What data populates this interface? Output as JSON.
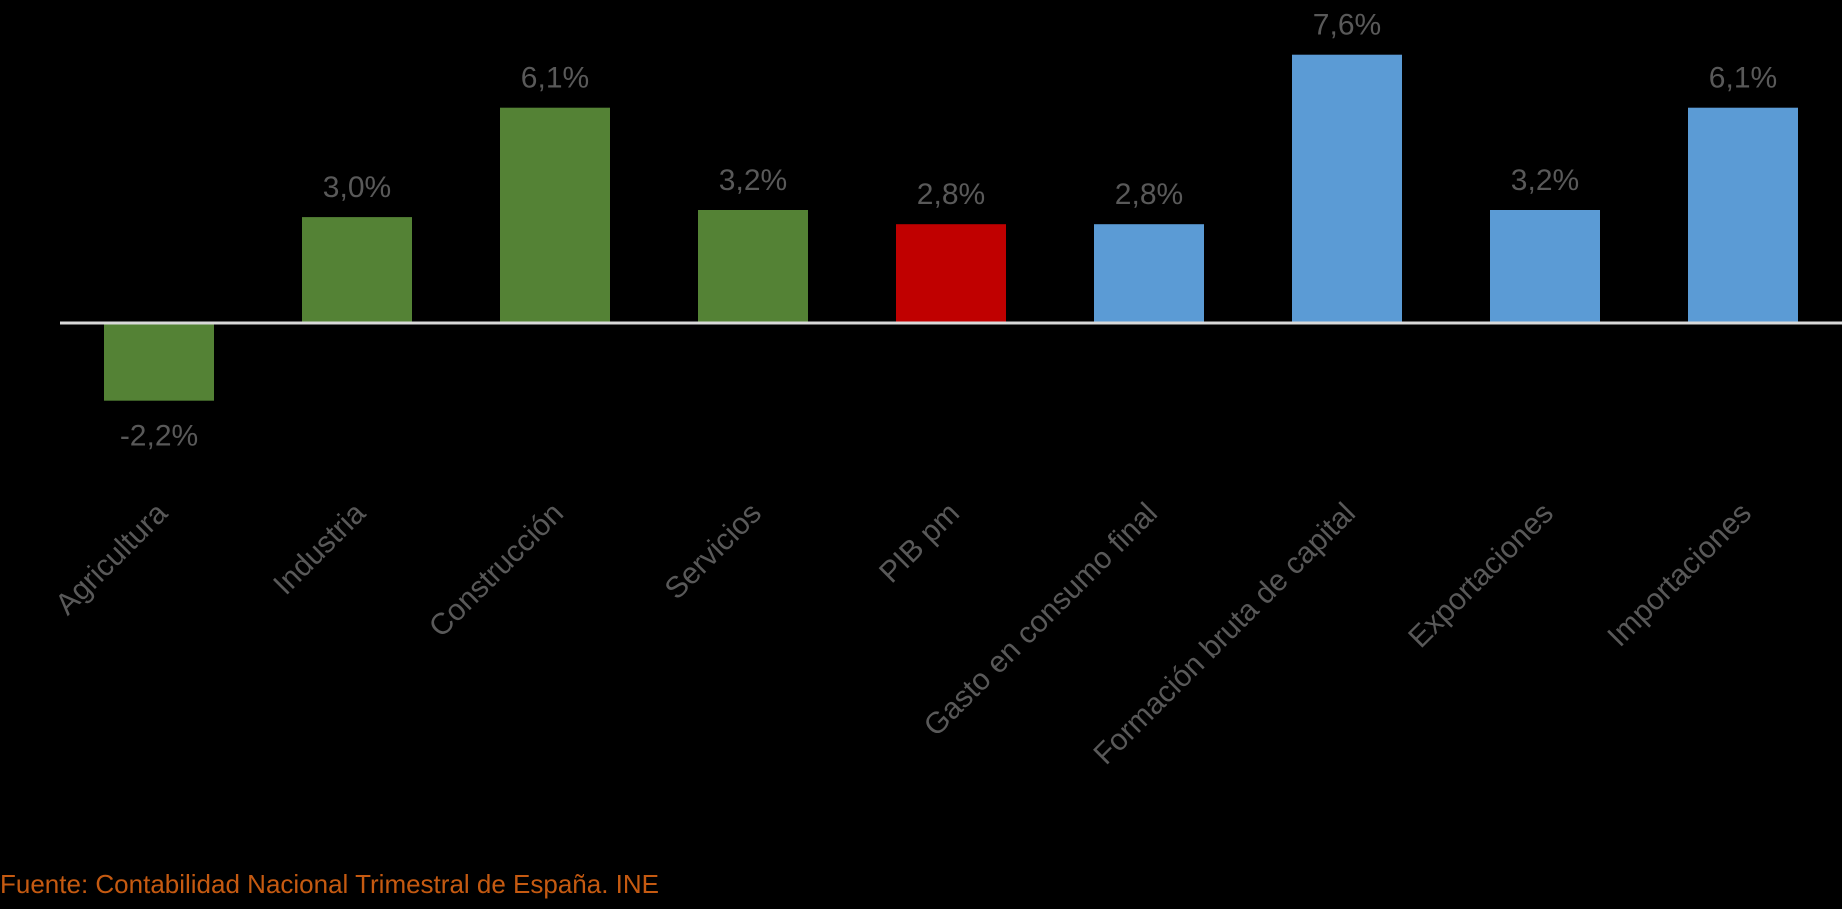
{
  "chart_data": {
    "type": "bar",
    "categories": [
      "Agricultura",
      "Industria",
      "Construcción",
      "Servicios",
      "PIB pm",
      "Gasto en consumo final",
      "Formación bruta de capital",
      "Exportaciones",
      "Importaciones"
    ],
    "values": [
      -2.2,
      3.0,
      6.1,
      3.2,
      2.8,
      2.8,
      7.6,
      3.2,
      6.1
    ],
    "value_labels": [
      "-2,2%",
      "3,0%",
      "6,1%",
      "3,2%",
      "2,8%",
      "2,8%",
      "7,6%",
      "3,2%",
      "6,1%"
    ],
    "bar_colors": [
      "#548235",
      "#548235",
      "#548235",
      "#548235",
      "#c00000",
      "#5b9bd5",
      "#5b9bd5",
      "#5b9bd5",
      "#5b9bd5"
    ],
    "title": "",
    "xlabel": "",
    "ylabel": "",
    "grid": false,
    "legend": "none"
  },
  "source": "Fuente: Contabilidad Nacional Trimestral de España. INE",
  "colors": {
    "background": "#000000",
    "axis": "#d9d9d9",
    "label_text": "#595959",
    "source_text": "#c55a11"
  }
}
